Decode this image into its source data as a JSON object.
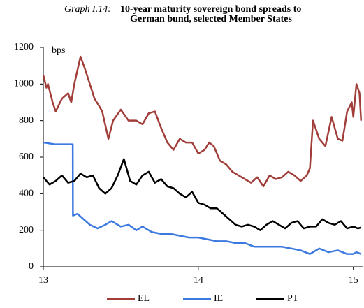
{
  "chart_data": {
    "type": "line",
    "title_label": "Graph I.14:",
    "title": [
      "10-year maturity sovereign bond spreads to",
      "German bund, selected Member States"
    ],
    "y_unit": "bps",
    "xlim": [
      13,
      15.06
    ],
    "xticks": [
      13,
      14,
      15
    ],
    "ylim": [
      0,
      1200
    ],
    "yticks": [
      0,
      200,
      400,
      600,
      800,
      1000,
      1200
    ],
    "legend": "bottom",
    "series": [
      {
        "name": "EL",
        "color": "#a23e3a",
        "x": [
          13.0,
          13.02,
          13.03,
          13.06,
          13.08,
          13.12,
          13.16,
          13.18,
          13.2,
          13.24,
          13.27,
          13.3,
          13.33,
          13.36,
          13.38,
          13.42,
          13.45,
          13.5,
          13.55,
          13.6,
          13.64,
          13.68,
          13.72,
          13.76,
          13.8,
          13.84,
          13.88,
          13.92,
          13.96,
          14.0,
          14.04,
          14.07,
          14.1,
          14.14,
          14.18,
          14.22,
          14.26,
          14.3,
          14.34,
          14.38,
          14.42,
          14.46,
          14.5,
          14.54,
          14.58,
          14.62,
          14.66,
          14.7,
          14.72,
          14.74,
          14.78,
          14.82,
          14.86,
          14.9,
          14.93,
          14.96,
          14.99,
          15.0,
          15.02,
          15.04,
          15.05
        ],
        "values": [
          1050,
          980,
          1000,
          900,
          850,
          920,
          950,
          900,
          1000,
          1150,
          1080,
          1000,
          920,
          880,
          850,
          700,
          800,
          860,
          800,
          800,
          780,
          840,
          850,
          760,
          680,
          640,
          700,
          680,
          680,
          620,
          640,
          680,
          660,
          580,
          560,
          520,
          500,
          480,
          460,
          490,
          440,
          500,
          480,
          490,
          520,
          500,
          470,
          500,
          540,
          800,
          700,
          660,
          820,
          700,
          690,
          850,
          900,
          820,
          1000,
          950,
          800
        ]
      },
      {
        "name": "IE",
        "color": "#3d7ae0",
        "x": [
          13.0,
          13.08,
          13.14,
          13.19,
          13.191,
          13.22,
          13.26,
          13.3,
          13.35,
          13.4,
          13.44,
          13.5,
          13.55,
          13.6,
          13.64,
          13.7,
          13.76,
          13.82,
          13.88,
          13.94,
          14.0,
          14.06,
          14.12,
          14.18,
          14.24,
          14.3,
          14.36,
          14.42,
          14.48,
          14.54,
          14.6,
          14.66,
          14.72,
          14.78,
          14.84,
          14.9,
          14.96,
          15.0,
          15.02,
          15.05
        ],
        "values": [
          680,
          670,
          670,
          670,
          280,
          290,
          260,
          230,
          210,
          230,
          250,
          220,
          230,
          200,
          220,
          190,
          180,
          180,
          170,
          160,
          160,
          150,
          140,
          140,
          130,
          130,
          110,
          110,
          110,
          110,
          100,
          90,
          70,
          100,
          80,
          90,
          70,
          70,
          80,
          70
        ]
      },
      {
        "name": "PT",
        "color": "#000000",
        "x": [
          13.0,
          13.04,
          13.08,
          13.12,
          13.16,
          13.2,
          13.24,
          13.28,
          13.32,
          13.36,
          13.4,
          13.44,
          13.48,
          13.52,
          13.56,
          13.6,
          13.64,
          13.68,
          13.72,
          13.76,
          13.8,
          13.84,
          13.88,
          13.92,
          13.96,
          14.0,
          14.04,
          14.08,
          14.12,
          14.16,
          14.2,
          14.24,
          14.28,
          14.32,
          14.36,
          14.4,
          14.44,
          14.48,
          14.52,
          14.56,
          14.6,
          14.64,
          14.68,
          14.72,
          14.76,
          14.8,
          14.84,
          14.88,
          14.92,
          14.96,
          15.0,
          15.03,
          15.05
        ],
        "values": [
          490,
          450,
          470,
          500,
          460,
          470,
          510,
          490,
          500,
          430,
          400,
          430,
          500,
          590,
          470,
          450,
          500,
          520,
          460,
          480,
          440,
          430,
          400,
          380,
          410,
          350,
          340,
          320,
          320,
          290,
          260,
          230,
          220,
          230,
          220,
          200,
          230,
          250,
          230,
          210,
          240,
          250,
          210,
          220,
          220,
          260,
          240,
          230,
          250,
          210,
          220,
          210,
          215
        ]
      }
    ]
  }
}
